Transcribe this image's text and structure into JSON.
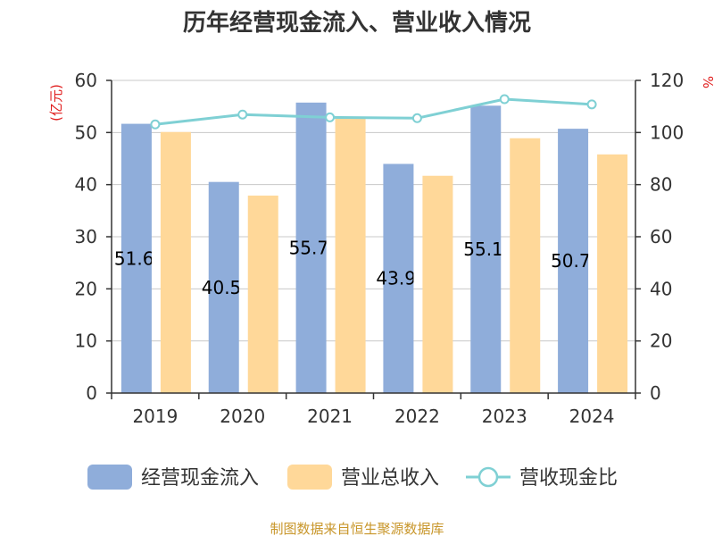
{
  "chart_data": {
    "type": "bar",
    "title": "历年经营现金流入、营业收入情况",
    "y_left_unit": "(亿元)",
    "y_right_unit": "%",
    "categories": [
      "2019",
      "2020",
      "2021",
      "2022",
      "2023",
      "2024"
    ],
    "ylim_left": [
      0,
      60
    ],
    "yticks_left": [
      "0",
      "10",
      "20",
      "30",
      "40",
      "50",
      "60"
    ],
    "ylim_right": [
      0,
      120
    ],
    "yticks_right": [
      "0",
      "20",
      "40",
      "60",
      "80",
      "100",
      "120"
    ],
    "grid": true,
    "legend_position": "bottom",
    "series": [
      {
        "name": "经营现金流入",
        "type": "bar",
        "axis": "left",
        "color": "#8fadda",
        "values": [
          51.674,
          40.515,
          55.743,
          43.977,
          55.147,
          50.723
        ],
        "labels": [
          "51.674",
          "40.515",
          "55.743",
          "43.977",
          "55.147",
          "50.723"
        ]
      },
      {
        "name": "营业总收入",
        "type": "bar",
        "axis": "left",
        "color": "#ffd899",
        "values": [
          50.1,
          37.9,
          52.7,
          41.7,
          48.9,
          45.8
        ]
      },
      {
        "name": "营收现金比",
        "type": "line",
        "axis": "right",
        "color": "#7fd0d4",
        "values": [
          103.1,
          106.9,
          105.8,
          105.5,
          112.8,
          110.8
        ]
      }
    ]
  },
  "source_text": "制图数据来自恒生聚源数据库"
}
